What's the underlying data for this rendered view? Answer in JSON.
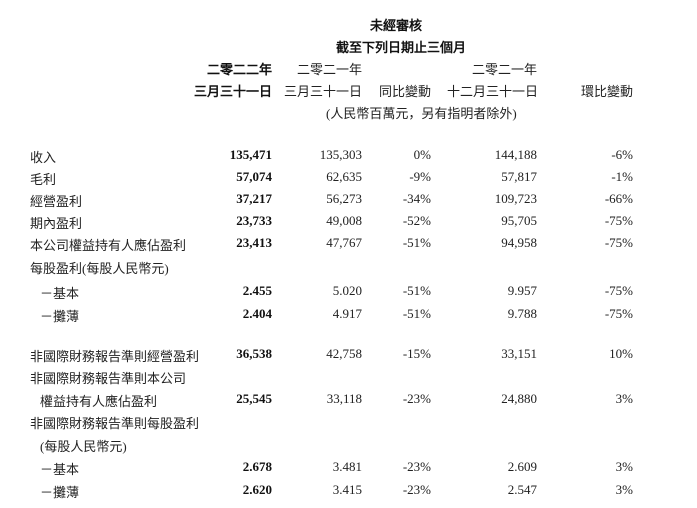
{
  "header": {
    "line1": "未經審核",
    "line2": "截至下列日期止三個月",
    "col1_year": "二零二二年",
    "col1_date": "三月三十一日",
    "col2_year": "二零二一年",
    "col2_date": "三月三十一日",
    "col3": "同比變動",
    "col4_year": "二零二一年",
    "col4_date": "十二月三十一日",
    "col5": "環比變動",
    "unit": "(人民幣百萬元，另有指明者除外)"
  },
  "rows": [
    {
      "label": "收入",
      "v": [
        "135,471",
        "135,303",
        "0%",
        "144,188",
        "-6%"
      ]
    },
    {
      "label": "毛利",
      "v": [
        "57,074",
        "62,635",
        "-9%",
        "57,817",
        "-1%"
      ]
    },
    {
      "label": "經營盈利",
      "v": [
        "37,217",
        "56,273",
        "-34%",
        "109,723",
        "-66%"
      ]
    },
    {
      "label": "期內盈利",
      "v": [
        "23,733",
        "49,008",
        "-52%",
        "95,705",
        "-75%"
      ]
    },
    {
      "label": "本公司權益持有人應佔盈利",
      "v": [
        "23,413",
        "47,767",
        "-51%",
        "94,958",
        "-75%"
      ]
    },
    {
      "label": "每股盈利(每股人民幣元)"
    },
    {
      "label": "－基本",
      "v": [
        "2.455",
        "5.020",
        "-51%",
        "9.957",
        "-75%"
      ]
    },
    {
      "label": "－攤薄",
      "v": [
        "2.404",
        "4.917",
        "-51%",
        "9.788",
        "-75%"
      ]
    },
    {
      "label": "非國際財務報告準則經營盈利",
      "v": [
        "36,538",
        "42,758",
        "-15%",
        "33,151",
        "10%"
      ]
    },
    {
      "label": "非國際財務報告準則本公司"
    },
    {
      "label": "權益持有人應佔盈利",
      "v": [
        "25,545",
        "33,118",
        "-23%",
        "24,880",
        "3%"
      ]
    },
    {
      "label": "非國際財務報告準則每股盈利"
    },
    {
      "label": "(每股人民幣元)"
    },
    {
      "label": "－基本",
      "v": [
        "2.678",
        "3.481",
        "-23%",
        "2.609",
        "3%"
      ]
    },
    {
      "label": "－攤薄",
      "v": [
        "2.620",
        "3.415",
        "-23%",
        "2.547",
        "3%"
      ]
    }
  ]
}
